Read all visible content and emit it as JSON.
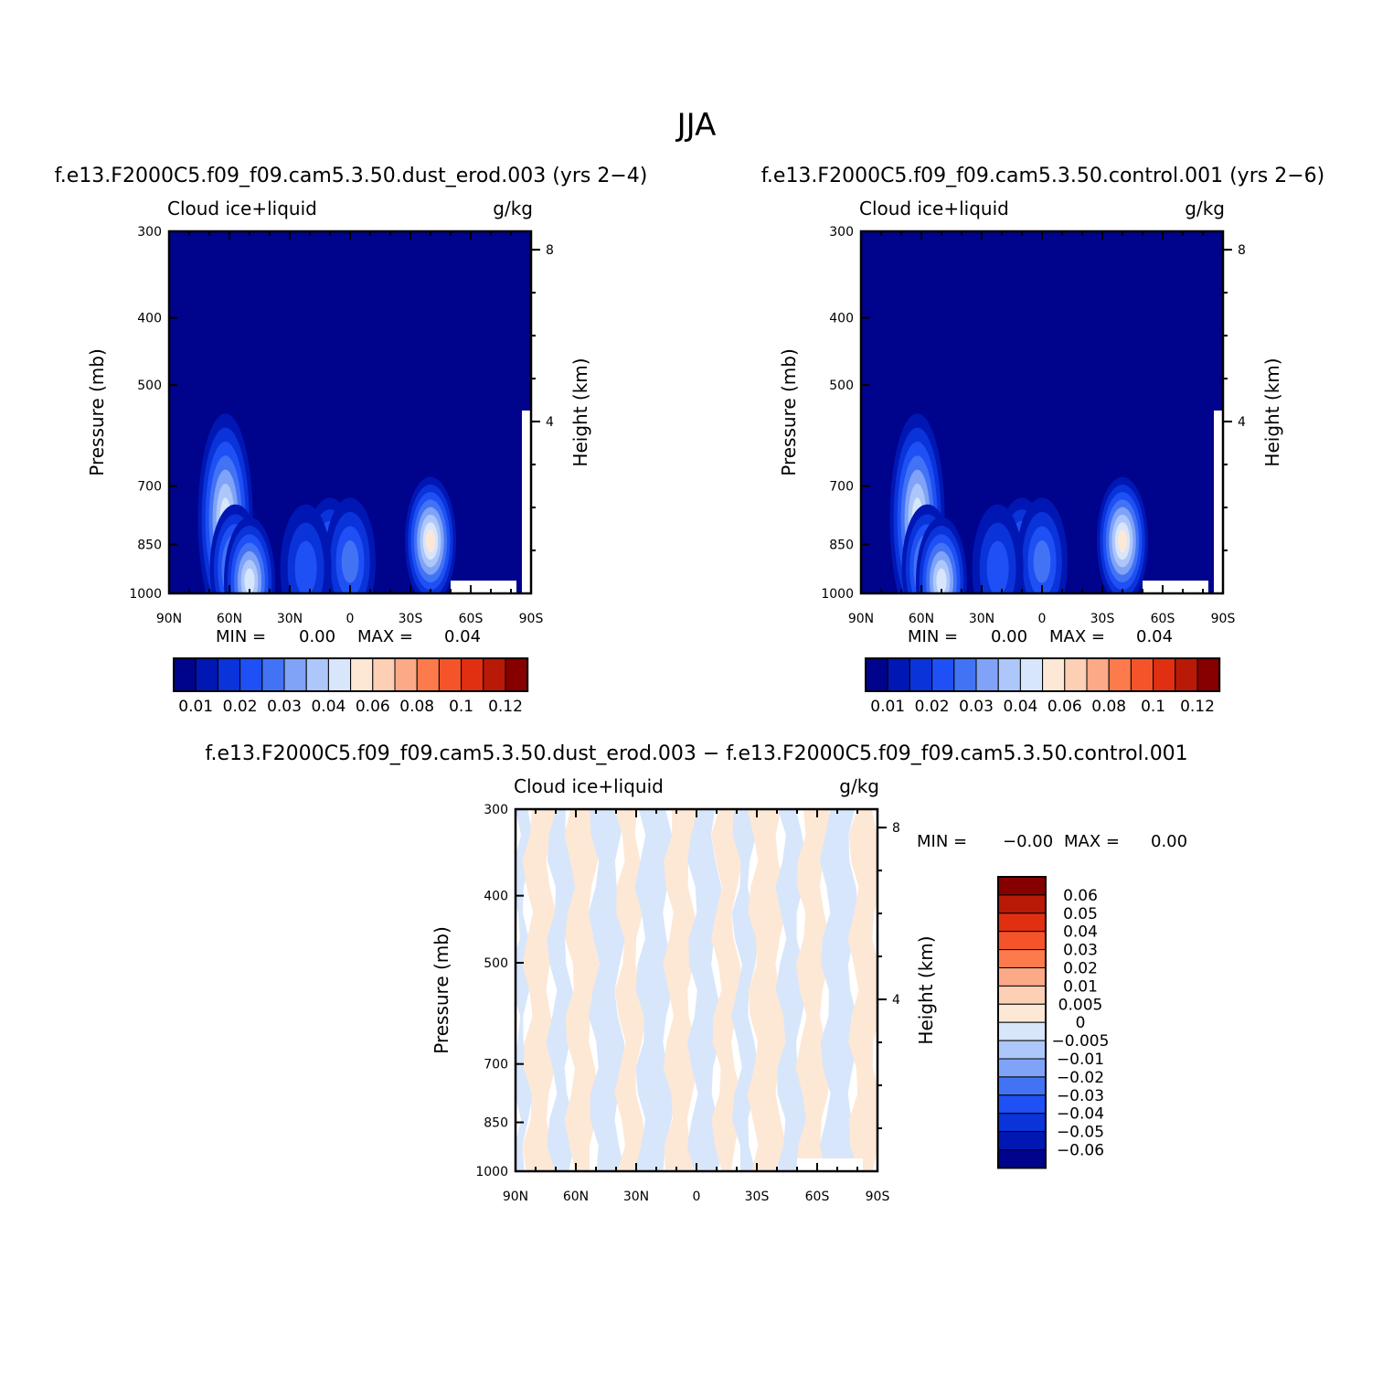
{
  "figure": {
    "title": "JJA",
    "panels": [
      {
        "id": "case",
        "heading": "f.e13.F2000C5.f09_f09.cam5.3.50.dust_erod.003 (yrs 2−4)",
        "left_label": "Cloud ice+liquid",
        "right_label": "g/kg",
        "ylabel": "Pressure (mb)",
        "y2label": "Height (km)",
        "min_label": "MIN =",
        "min_value": "0.00",
        "max_label": "MAX =",
        "max_value": "0.04"
      },
      {
        "id": "control",
        "heading": "f.e13.F2000C5.f09_f09.cam5.3.50.control.001 (yrs 2−6)",
        "left_label": "Cloud ice+liquid",
        "right_label": "g/kg",
        "ylabel": "Pressure (mb)",
        "y2label": "Height (km)",
        "min_label": "MIN =",
        "min_value": "0.00",
        "max_label": "MAX =",
        "max_value": "0.04"
      },
      {
        "id": "difference",
        "heading": "f.e13.F2000C5.f09_f09.cam5.3.50.dust_erod.003 − f.e13.F2000C5.f09_f09.cam5.3.50.control.001",
        "left_label": "Cloud ice+liquid",
        "right_label": "g/kg",
        "ylabel": "Pressure (mb)",
        "y2label": "Height (km)",
        "min_label": "MIN =",
        "min_value": "−0.00",
        "max_label": "MAX =",
        "max_value": "0.00"
      }
    ]
  },
  "chart_data": [
    {
      "type": "heatmap",
      "panel": "case",
      "x_ticks": [
        "90N",
        "60N",
        "30N",
        "0",
        "30S",
        "60S",
        "90S"
      ],
      "x_tick_values": [
        90,
        60,
        30,
        0,
        -30,
        -60,
        -90
      ],
      "xlim": [
        90,
        -90
      ],
      "y_ticks": [
        "300",
        "400",
        "500",
        "700",
        "850",
        "1000"
      ],
      "y_tick_values": [
        300,
        400,
        500,
        700,
        850,
        1000
      ],
      "ylim": [
        1000,
        300
      ],
      "y_scale": "log",
      "y2_ticks": [
        "8",
        "4"
      ],
      "y2_tick_values": [
        8,
        4
      ],
      "colorbar": {
        "orientation": "horizontal",
        "labels": [
          "0.01",
          "0.02",
          "0.03",
          "0.04",
          "0.06",
          "0.08",
          "0.1",
          "0.12"
        ],
        "colors": [
          "#00038c",
          "#0017b4",
          "#0a33d9",
          "#1e50f5",
          "#4273f5",
          "#80a3f7",
          "#adc7fa",
          "#d7e6fb",
          "#fde8d6",
          "#fdcfb4",
          "#fca988",
          "#fd7a4c",
          "#f5542a",
          "#e03011",
          "#b81a07",
          "#870000"
        ]
      },
      "features": [
        {
          "lat": 62,
          "p": 780,
          "value": 0.035
        },
        {
          "lat": 57,
          "p": 920,
          "value": 0.03
        },
        {
          "lat": 50,
          "p": 960,
          "value": 0.035
        },
        {
          "lat": 10,
          "p": 900,
          "value": 0.025
        },
        {
          "lat": 0,
          "p": 900,
          "value": 0.02
        },
        {
          "lat": -40,
          "p": 840,
          "value": 0.04
        },
        {
          "lat": 22,
          "p": 920,
          "value": 0.015
        }
      ]
    },
    {
      "type": "heatmap",
      "panel": "control",
      "x_ticks": [
        "90N",
        "60N",
        "30N",
        "0",
        "30S",
        "60S",
        "90S"
      ],
      "x_tick_values": [
        90,
        60,
        30,
        0,
        -30,
        -60,
        -90
      ],
      "xlim": [
        90,
        -90
      ],
      "y_ticks": [
        "300",
        "400",
        "500",
        "700",
        "850",
        "1000"
      ],
      "y_tick_values": [
        300,
        400,
        500,
        700,
        850,
        1000
      ],
      "ylim": [
        1000,
        300
      ],
      "y_scale": "log",
      "y2_ticks": [
        "8",
        "4"
      ],
      "y2_tick_values": [
        8,
        4
      ],
      "colorbar": {
        "orientation": "horizontal",
        "labels": [
          "0.01",
          "0.02",
          "0.03",
          "0.04",
          "0.06",
          "0.08",
          "0.1",
          "0.12"
        ],
        "colors": [
          "#00038c",
          "#0017b4",
          "#0a33d9",
          "#1e50f5",
          "#4273f5",
          "#80a3f7",
          "#adc7fa",
          "#d7e6fb",
          "#fde8d6",
          "#fdcfb4",
          "#fca988",
          "#fd7a4c",
          "#f5542a",
          "#e03011",
          "#b81a07",
          "#870000"
        ]
      },
      "features": [
        {
          "lat": 62,
          "p": 780,
          "value": 0.035
        },
        {
          "lat": 57,
          "p": 920,
          "value": 0.03
        },
        {
          "lat": 50,
          "p": 960,
          "value": 0.035
        },
        {
          "lat": 10,
          "p": 900,
          "value": 0.025
        },
        {
          "lat": 0,
          "p": 900,
          "value": 0.02
        },
        {
          "lat": -40,
          "p": 840,
          "value": 0.04
        },
        {
          "lat": 22,
          "p": 920,
          "value": 0.015
        }
      ]
    },
    {
      "type": "heatmap",
      "panel": "difference",
      "x_ticks": [
        "90N",
        "60N",
        "30N",
        "0",
        "30S",
        "60S",
        "90S"
      ],
      "x_tick_values": [
        90,
        60,
        30,
        0,
        -30,
        -60,
        -90
      ],
      "xlim": [
        90,
        -90
      ],
      "y_ticks": [
        "300",
        "400",
        "500",
        "700",
        "850",
        "1000"
      ],
      "y_tick_values": [
        300,
        400,
        500,
        700,
        850,
        1000
      ],
      "ylim": [
        1000,
        300
      ],
      "y_scale": "log",
      "y2_ticks": [
        "8",
        "4"
      ],
      "y2_tick_values": [
        8,
        4
      ],
      "colorbar": {
        "orientation": "vertical",
        "labels": [
          "0.06",
          "0.05",
          "0.04",
          "0.03",
          "0.02",
          "0.01",
          "0.005",
          "0",
          "−0.005",
          "−0.01",
          "−0.02",
          "−0.03",
          "−0.04",
          "−0.05",
          "−0.06"
        ],
        "colors": [
          "#870000",
          "#b81a07",
          "#e03011",
          "#f5542a",
          "#fd7a4c",
          "#fca988",
          "#fdcfb4",
          "#fde8d6",
          "#d7e6fb",
          "#adc7fa",
          "#80a3f7",
          "#4273f5",
          "#1e50f5",
          "#0a33d9",
          "#0017b4",
          "#00038c"
        ]
      },
      "bands": [
        {
          "lat_from": 90,
          "lat_to": 84,
          "sign": "negative"
        },
        {
          "lat_from": 84,
          "lat_to": 72,
          "sign": "positive"
        },
        {
          "lat_from": 72,
          "lat_to": 63,
          "sign": "negative"
        },
        {
          "lat_from": 63,
          "lat_to": 51,
          "sign": "positive"
        },
        {
          "lat_from": 51,
          "lat_to": 38,
          "sign": "negative"
        },
        {
          "lat_from": 38,
          "lat_to": 28,
          "sign": "positive"
        },
        {
          "lat_from": 28,
          "lat_to": 14,
          "sign": "negative"
        },
        {
          "lat_from": 14,
          "lat_to": 2,
          "sign": "positive"
        },
        {
          "lat_from": 2,
          "lat_to": -10,
          "sign": "negative"
        },
        {
          "lat_from": -10,
          "lat_to": -20,
          "sign": "positive"
        },
        {
          "lat_from": -20,
          "lat_to": -28,
          "sign": "negative"
        },
        {
          "lat_from": -28,
          "lat_to": -42,
          "sign": "positive"
        },
        {
          "lat_from": -42,
          "lat_to": -52,
          "sign": "negative"
        },
        {
          "lat_from": -52,
          "lat_to": -64,
          "sign": "positive"
        },
        {
          "lat_from": -64,
          "lat_to": -78,
          "sign": "negative"
        },
        {
          "lat_from": -78,
          "lat_to": -90,
          "sign": "positive"
        }
      ]
    }
  ]
}
